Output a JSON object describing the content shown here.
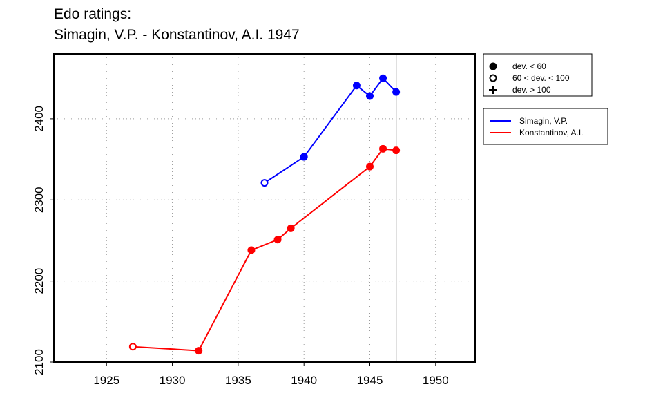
{
  "chart_data": {
    "type": "line",
    "title": [
      "Edo ratings:",
      "Simagin, V.P. - Konstantinov, A.I. 1947"
    ],
    "xlabel": "",
    "ylabel": "",
    "xlim": [
      1921,
      1953
    ],
    "ylim": [
      2100,
      2480
    ],
    "x_ticks": [
      1925,
      1930,
      1935,
      1940,
      1945,
      1950
    ],
    "y_ticks": [
      2100,
      2200,
      2300,
      2400
    ],
    "grid": "dotted",
    "reference_line_x": 1947,
    "marker_legend": [
      {
        "label": "dev. < 60",
        "marker": "filled-circle"
      },
      {
        "label": "60 < dev. < 100",
        "marker": "open-circle"
      },
      {
        "label": "dev. > 100",
        "marker": "plus"
      }
    ],
    "series": [
      {
        "name": "Simagin, V.P.",
        "color": "#0000ff",
        "x": [
          1937,
          1940,
          1944,
          1945,
          1946,
          1947
        ],
        "y": [
          2321,
          2353,
          2441,
          2428,
          2450,
          2433
        ],
        "markers": [
          "open-circle",
          "filled-circle",
          "filled-circle",
          "filled-circle",
          "filled-circle",
          "filled-circle"
        ]
      },
      {
        "name": "Konstantinov, A.I.",
        "color": "#ff0000",
        "x": [
          1927,
          1932,
          1936,
          1938,
          1939,
          1945,
          1946,
          1947
        ],
        "y": [
          2119,
          2114,
          2238,
          2251,
          2265,
          2341,
          2363,
          2361
        ],
        "markers": [
          "open-circle",
          "filled-circle",
          "filled-circle",
          "filled-circle",
          "filled-circle",
          "filled-circle",
          "filled-circle",
          "filled-circle"
        ]
      }
    ],
    "legend_position": "right"
  }
}
